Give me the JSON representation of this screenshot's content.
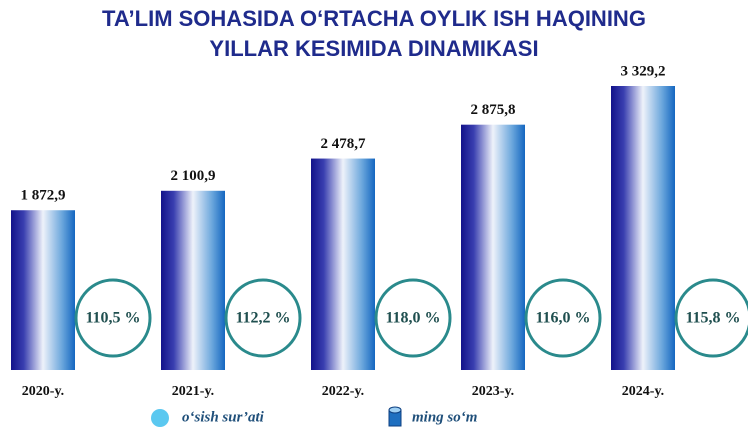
{
  "chart_data": {
    "type": "bar",
    "title": [
      "TA’LIM SOHASIDA O‘RTACHA OYLIK ISH HAQINING",
      "YILLAR KESIMIDA DINAMIKASI"
    ],
    "categories": [
      "2020-y.",
      "2021-y.",
      "2022-y.",
      "2023-y.",
      "2024-y."
    ],
    "series": [
      {
        "name": "ming so‘m",
        "color": "#1a1f9a",
        "values": [
          1872.9,
          2100.9,
          2478.7,
          2875.8,
          3329.2
        ],
        "value_labels": [
          "1 872,9",
          "2 100,9",
          "2 478,7",
          "2 875,8",
          "3 329,2"
        ]
      },
      {
        "name": "o‘sish sur’ati",
        "color": "#2a8a8c",
        "values": [
          110.5,
          112.2,
          118.0,
          116.0,
          115.8
        ],
        "value_labels": [
          "110,5 %",
          "112,2 %",
          "118,0 %",
          "116,0 %",
          "115,8 %"
        ]
      }
    ]
  }
}
